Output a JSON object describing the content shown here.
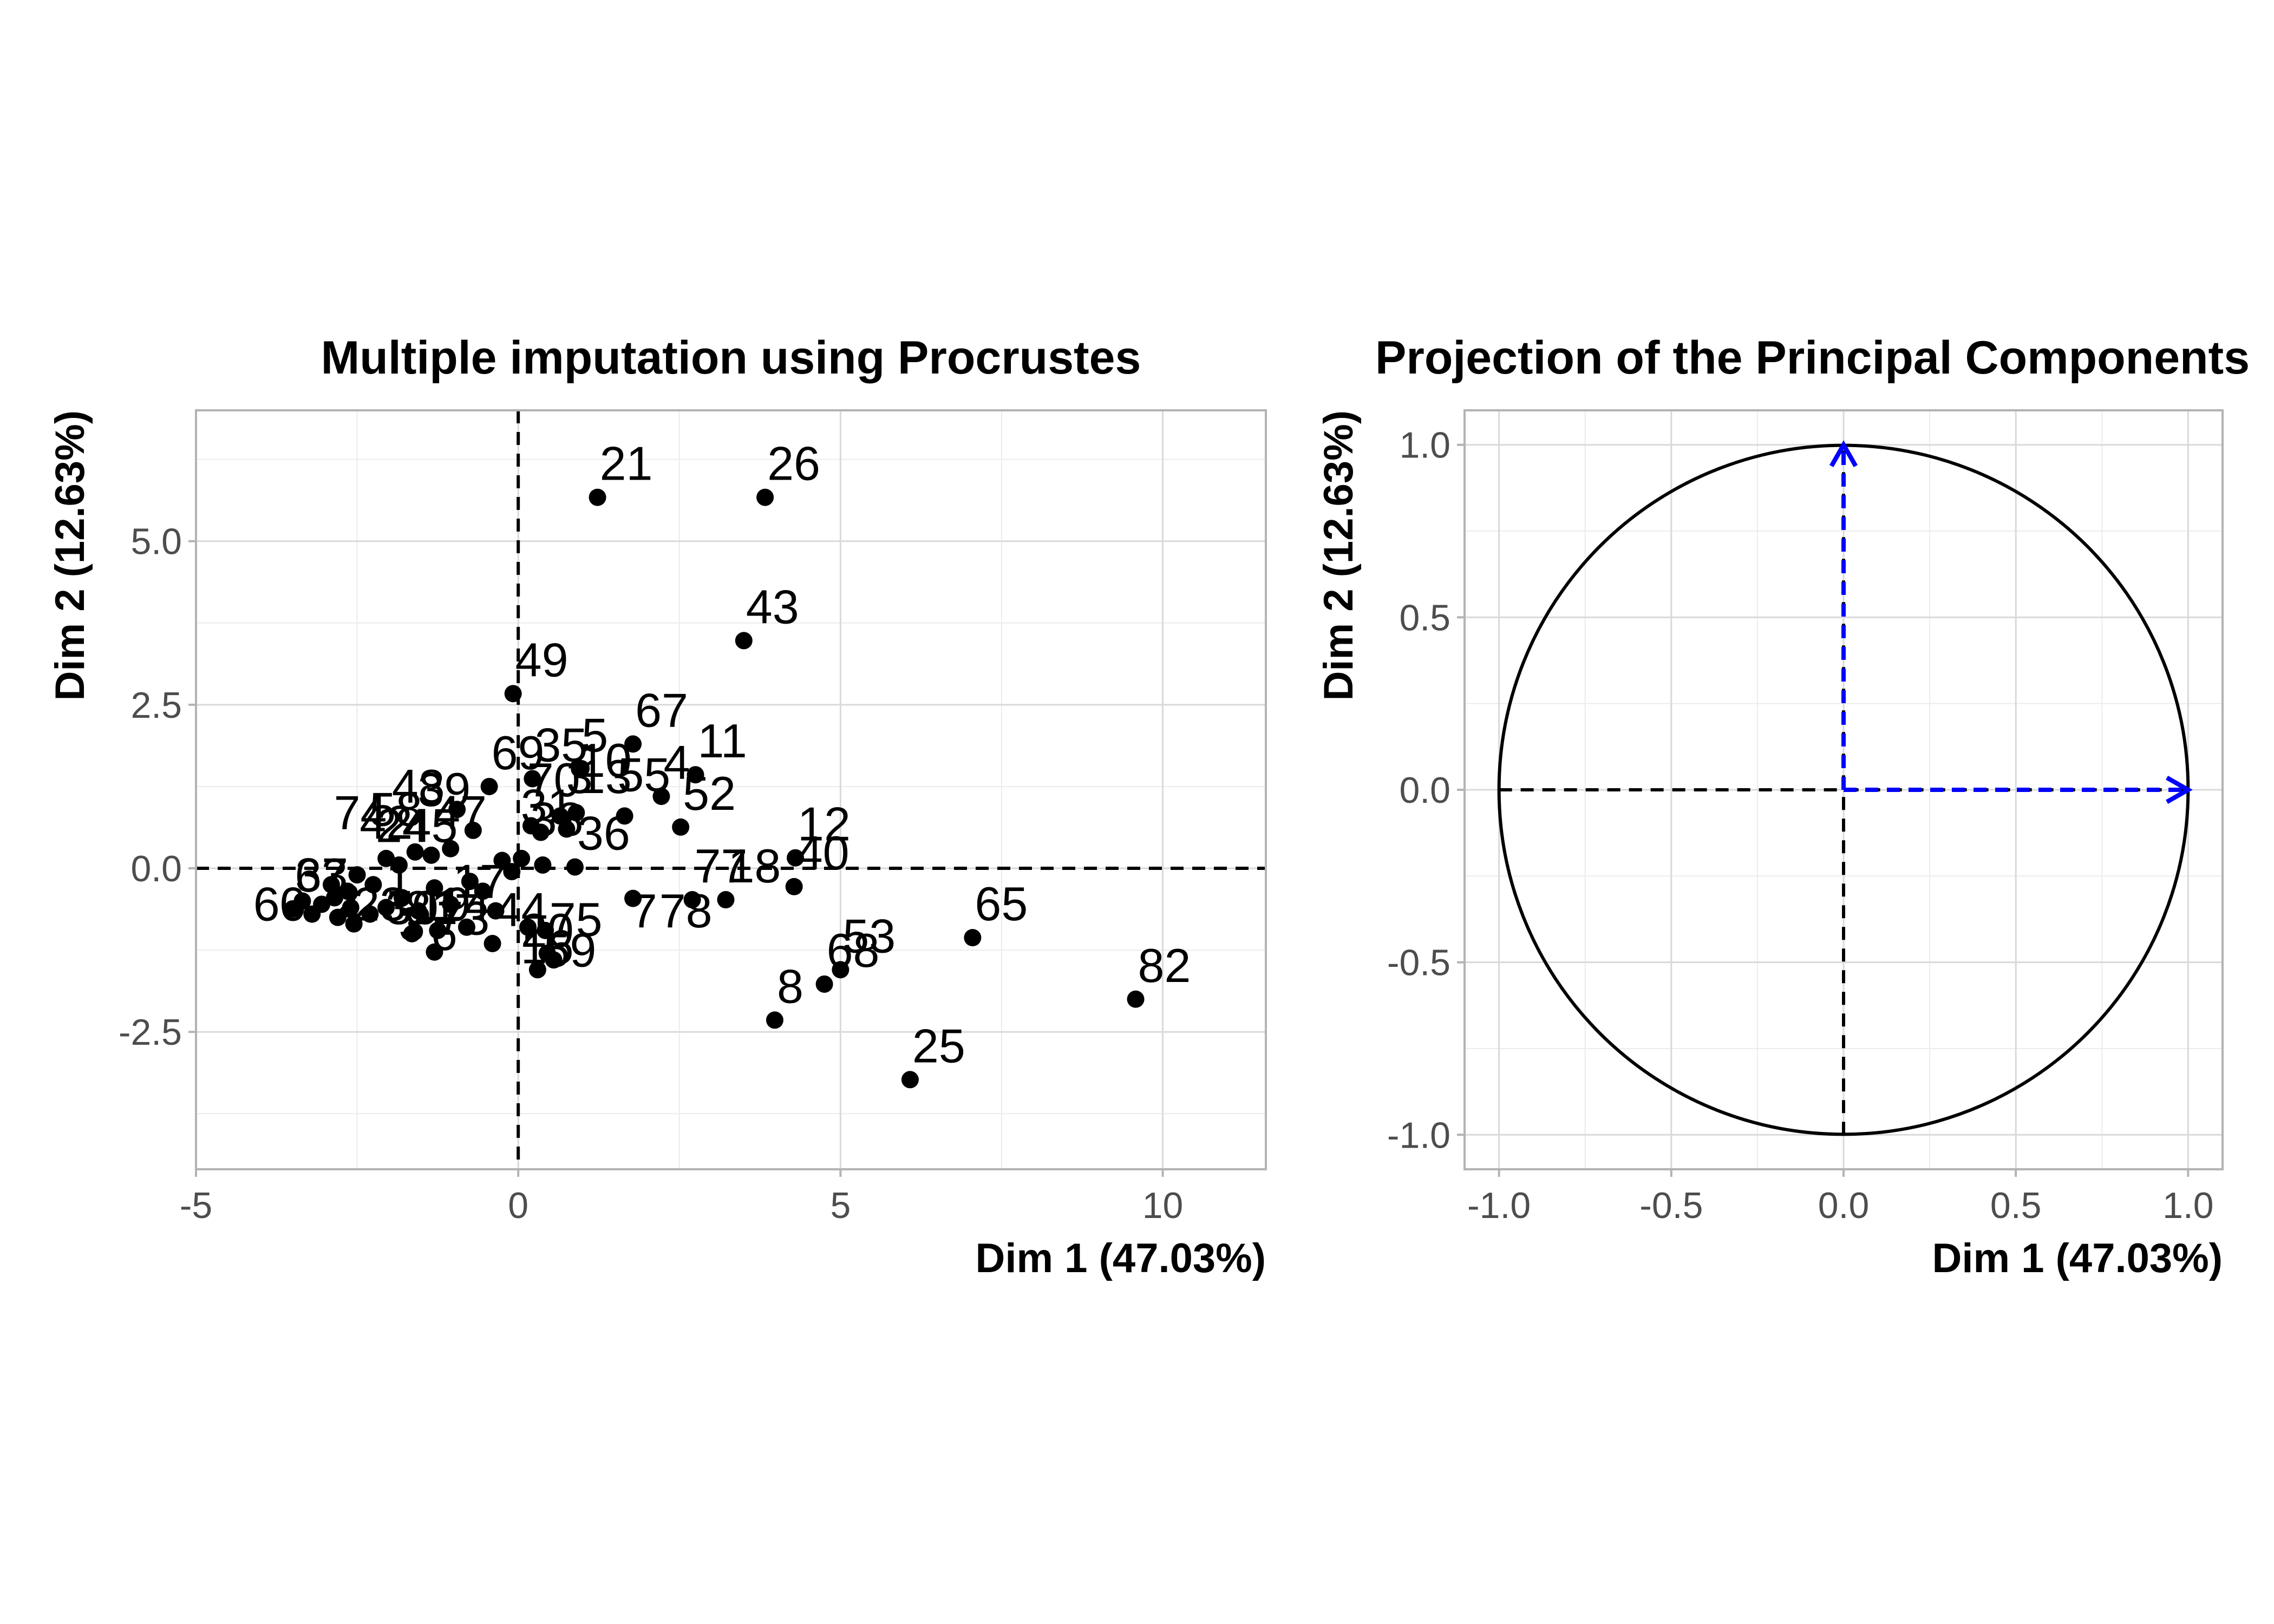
{
  "chart_data": [
    {
      "type": "scatter",
      "title": "Multiple imputation using Procrustes",
      "xlabel": "Dim 1 (47.03%)",
      "ylabel": "Dim 2 (12.63%)",
      "xlim": [
        -5,
        11.6
      ],
      "ylim": [
        -4.6,
        7.0
      ],
      "xticks": [
        -5,
        0,
        5,
        10
      ],
      "yticks": [
        -2.5,
        0.0,
        2.5,
        5.0
      ],
      "ytick_labels": [
        "-2.5",
        "0.0",
        "2.5",
        "5.0"
      ],
      "grid": true,
      "points": [
        {
          "label": "21",
          "x": 1.23,
          "y": 5.67
        },
        {
          "label": "26",
          "x": 3.83,
          "y": 5.67
        },
        {
          "label": "43",
          "x": 3.5,
          "y": 3.48
        },
        {
          "label": "49",
          "x": -0.08,
          "y": 2.67
        },
        {
          "label": "67",
          "x": 1.78,
          "y": 1.9
        },
        {
          "label": "11",
          "x": 2.75,
          "y": 1.43
        },
        {
          "label": "35",
          "x": 0.22,
          "y": 1.37
        },
        {
          "label": "5",
          "x": 0.95,
          "y": 1.52
        },
        {
          "label": "69",
          "x": -0.45,
          "y": 1.25
        },
        {
          "label": "4",
          "x": 2.22,
          "y": 1.1
        },
        {
          "label": "52",
          "x": 2.52,
          "y": 0.63
        },
        {
          "label": "12",
          "x": 4.3,
          "y": 0.16
        },
        {
          "label": "40",
          "x": 4.28,
          "y": -0.28
        },
        {
          "label": "18",
          "x": 3.22,
          "y": -0.48
        },
        {
          "label": "77",
          "x": 2.7,
          "y": -0.48
        },
        {
          "label": "65",
          "x": 7.05,
          "y": -1.06
        },
        {
          "label": "82",
          "x": 9.58,
          "y": -2.0
        },
        {
          "label": "53",
          "x": 5.0,
          "y": -1.55
        },
        {
          "label": "68",
          "x": 4.75,
          "y": -1.77
        },
        {
          "label": "8",
          "x": 3.98,
          "y": -2.32
        },
        {
          "label": "25",
          "x": 6.08,
          "y": -3.23
        },
        {
          "label": "36",
          "x": 0.88,
          "y": 0.02
        },
        {
          "label": "75",
          "x": 0.45,
          "y": -1.3
        },
        {
          "label": "73",
          "x": -1.3,
          "y": -1.28
        },
        {
          "label": "44",
          "x": -0.4,
          "y": -1.15
        },
        {
          "label": "63",
          "x": -3.5,
          "y": -0.62
        },
        {
          "label": "",
          "x": 1.78,
          "y": -0.46
        },
        {
          "label": "",
          "x": 1.65,
          "y": 0.8
        },
        {
          "label": "",
          "x": 0.9,
          "y": 0.85
        },
        {
          "label": "",
          "x": 0.65,
          "y": 0.8
        },
        {
          "label": "",
          "x": 0.35,
          "y": 0.55
        },
        {
          "label": "",
          "x": 0.2,
          "y": 0.65
        },
        {
          "label": "",
          "x": 0.05,
          "y": 0.15
        },
        {
          "label": "",
          "x": 0.38,
          "y": 0.05
        },
        {
          "label": "",
          "x": -0.1,
          "y": -0.05
        },
        {
          "label": "",
          "x": 0.15,
          "y": -0.9
        },
        {
          "label": "",
          "x": 0.42,
          "y": -0.95
        },
        {
          "label": "",
          "x": 0.3,
          "y": -1.55
        },
        {
          "label": "",
          "x": 0.55,
          "y": -1.4
        },
        {
          "label": "",
          "x": -0.7,
          "y": 0.58
        },
        {
          "label": "",
          "x": -0.95,
          "y": 0.9
        },
        {
          "label": "",
          "x": -1.05,
          "y": 0.3
        },
        {
          "label": "",
          "x": -1.35,
          "y": 0.2
        },
        {
          "label": "",
          "x": -1.6,
          "y": 0.25
        },
        {
          "label": "",
          "x": -1.85,
          "y": 0.05
        },
        {
          "label": "",
          "x": -2.05,
          "y": 0.15
        },
        {
          "label": "",
          "x": -2.25,
          "y": -0.25
        },
        {
          "label": "",
          "x": -2.5,
          "y": -0.1
        },
        {
          "label": "",
          "x": -2.65,
          "y": -0.35
        },
        {
          "label": "",
          "x": -2.85,
          "y": -0.45
        },
        {
          "label": "",
          "x": -3.05,
          "y": -0.55
        },
        {
          "label": "",
          "x": -3.2,
          "y": -0.7
        },
        {
          "label": "",
          "x": -2.8,
          "y": -0.75
        },
        {
          "label": "",
          "x": -2.55,
          "y": -0.85
        },
        {
          "label": "",
          "x": -2.3,
          "y": -0.7
        },
        {
          "label": "",
          "x": -2.05,
          "y": -0.6
        },
        {
          "label": "",
          "x": -1.8,
          "y": -0.45
        },
        {
          "label": "",
          "x": -1.55,
          "y": -0.65
        },
        {
          "label": "",
          "x": -1.3,
          "y": -0.3
        },
        {
          "label": "",
          "x": -1.05,
          "y": -0.55
        },
        {
          "label": "",
          "x": -0.8,
          "y": -0.9
        },
        {
          "label": "",
          "x": -0.55,
          "y": -0.35
        },
        {
          "label": "",
          "x": -0.35,
          "y": -0.65
        },
        {
          "label": "",
          "x": -0.75,
          "y": -0.2
        },
        {
          "label": "",
          "x": -1.25,
          "y": -0.95
        },
        {
          "label": "",
          "x": -1.65,
          "y": -1.0
        },
        {
          "label": "",
          "x": -2.9,
          "y": -0.25
        },
        {
          "label": "",
          "x": -3.35,
          "y": -0.5
        },
        {
          "label": "",
          "x": -2.6,
          "y": -0.6
        },
        {
          "label": "",
          "x": -0.25,
          "y": 0.12
        },
        {
          "label": "",
          "x": 0.75,
          "y": 0.6
        }
      ],
      "extra_labels": [
        {
          "text": "10",
          "x": 1.35,
          "y": 1.4
        },
        {
          "text": "13",
          "x": 1.35,
          "y": 1.15
        },
        {
          "text": "55",
          "x": 1.95,
          "y": 1.18
        },
        {
          "text": "70",
          "x": 0.55,
          "y": 1.1
        },
        {
          "text": "31",
          "x": 0.45,
          "y": 0.7
        },
        {
          "text": "3",
          "x": 0.95,
          "y": 1.15
        },
        {
          "text": "38",
          "x": 0.6,
          "y": 0.5
        },
        {
          "text": "74",
          "x": -2.45,
          "y": 0.6
        },
        {
          "text": "58",
          "x": -1.9,
          "y": 0.65
        },
        {
          "text": "42",
          "x": -2.05,
          "y": 0.45
        },
        {
          "text": "24",
          "x": -1.8,
          "y": 0.4
        },
        {
          "text": "45",
          "x": -1.35,
          "y": 0.4
        },
        {
          "text": "47",
          "x": -0.9,
          "y": 0.6
        },
        {
          "text": "48",
          "x": -1.55,
          "y": 1.0
        },
        {
          "text": "39",
          "x": -1.15,
          "y": 0.95
        },
        {
          "text": "37",
          "x": -3.05,
          "y": -0.35
        },
        {
          "text": "1",
          "x": -1.85,
          "y": -0.4
        },
        {
          "text": "17",
          "x": -0.6,
          "y": -0.45
        },
        {
          "text": "19",
          "x": -1.15,
          "y": -0.8
        },
        {
          "text": "14",
          "x": -0.85,
          "y": -0.8
        },
        {
          "text": "23",
          "x": -2.15,
          "y": -0.8
        },
        {
          "text": "30",
          "x": -1.65,
          "y": -0.85
        },
        {
          "text": "81",
          "x": -1.35,
          "y": -0.85
        },
        {
          "text": "2",
          "x": -2.65,
          "y": -0.75
        },
        {
          "text": "60",
          "x": -3.7,
          "y": -0.8
        },
        {
          "text": "6",
          "x": -1.15,
          "y": -1.25
        },
        {
          "text": "3",
          "x": -1.65,
          "y": -1.1
        },
        {
          "text": "20",
          "x": 0.45,
          "y": -1.2
        },
        {
          "text": "16",
          "x": 0.45,
          "y": -1.45
        },
        {
          "text": "59",
          "x": 0.8,
          "y": -1.5
        },
        {
          "text": "7",
          "x": 1.95,
          "y": -0.9
        },
        {
          "text": "78",
          "x": 2.6,
          "y": -0.9
        }
      ]
    },
    {
      "type": "scatter",
      "title": "Projection of the Principal Components",
      "xlabel": "Dim 1 (47.03%)",
      "ylabel": "Dim 2 (12.63%)",
      "xlim": [
        -1.1,
        1.1
      ],
      "ylim": [
        -1.1,
        1.1
      ],
      "xticks": [
        -1.0,
        -0.5,
        0.0,
        0.5,
        1.0
      ],
      "xtick_labels": [
        "-1.0",
        "-0.5",
        "0.0",
        "0.5",
        "1.0"
      ],
      "yticks": [
        -1.0,
        -0.5,
        0.0,
        0.5,
        1.0
      ],
      "ytick_labels": [
        "-1.0",
        "-0.5",
        "0.0",
        "0.5",
        "1.0"
      ],
      "grid": true,
      "circle_radius": 1.0,
      "arrows": [
        {
          "x": 1.0,
          "y": 0.0
        },
        {
          "x": 0.0,
          "y": 1.0
        }
      ],
      "arrow_color": "#0000ff"
    }
  ]
}
